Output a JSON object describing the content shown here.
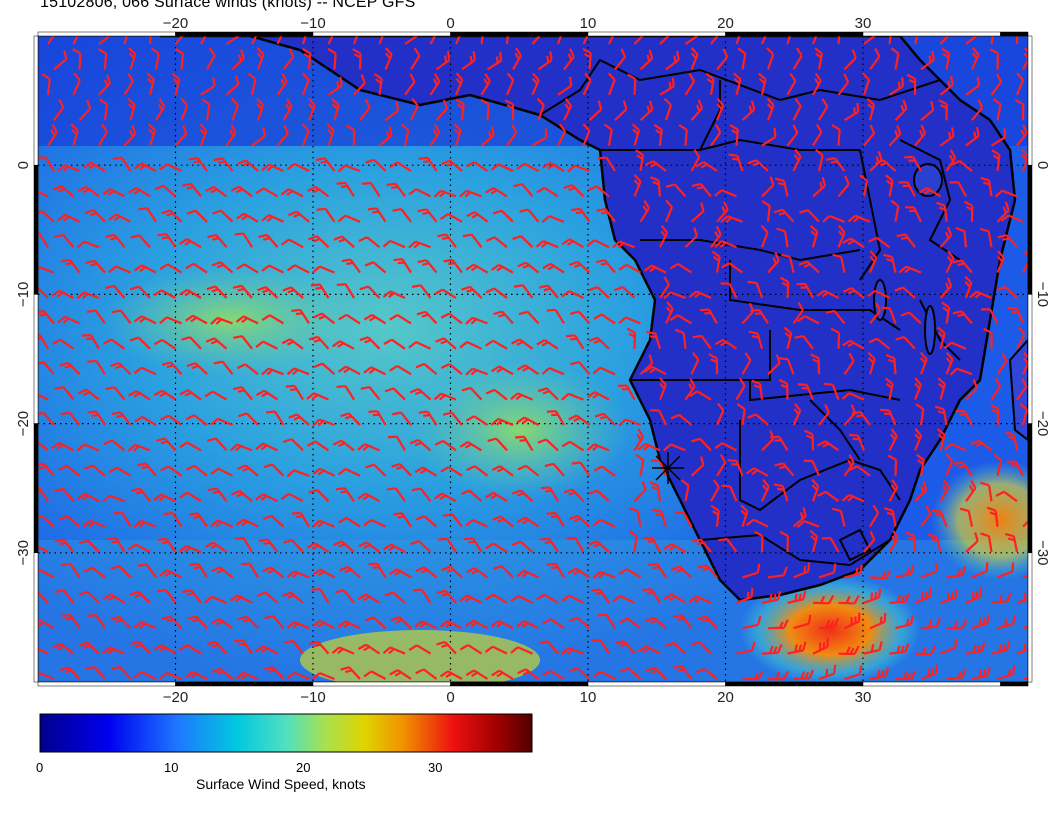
{
  "title": "15102806, 066 Surface winds (knots) -- NCEP GFS",
  "map": {
    "lon_range": [
      -30,
      42
    ],
    "lat_range": [
      -40,
      10
    ],
    "lon_ticks": [
      -20,
      -10,
      0,
      10,
      20,
      30
    ],
    "lat_ticks": [
      0,
      -10,
      -20,
      -30
    ],
    "lon_tick_labels": [
      "−20",
      "−10",
      "0",
      "10",
      "20",
      "30"
    ],
    "lat_tick_labels": [
      "0",
      "−10",
      "−20",
      "−30"
    ],
    "gridlines": "dotted",
    "marker": {
      "label": "star",
      "lon": 15,
      "lat": -23
    }
  },
  "colorbar": {
    "label": "Surface Wind Speed, knots",
    "ticks": [
      "0",
      "10",
      "20",
      "30"
    ],
    "range": [
      0,
      37
    ],
    "colors": [
      "#00008b",
      "#0000ff",
      "#1e90ff",
      "#00ced1",
      "#7fffd4",
      "#adff2f",
      "#e0e000",
      "#ff8c00",
      "#ff0000",
      "#8b0000",
      "#5a0000"
    ]
  },
  "barb_color": "#ff2020"
}
